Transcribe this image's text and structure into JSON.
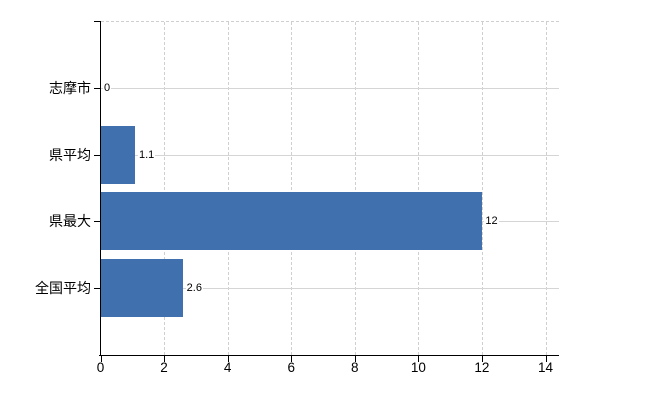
{
  "chart_data": {
    "type": "bar",
    "orientation": "horizontal",
    "title": "",
    "categories": [
      "志摩市",
      "県平均",
      "県最大",
      "全国平均"
    ],
    "values": [
      0,
      1.1,
      12,
      2.6
    ],
    "value_labels": [
      "0",
      "1.1",
      "12",
      "2.6"
    ],
    "x_ticks": [
      0,
      2,
      4,
      6,
      8,
      10,
      12,
      14
    ],
    "x_tick_labels": [
      "0",
      "2",
      "4",
      "6",
      "8",
      "10",
      "12",
      "14"
    ],
    "xlim": [
      0,
      14
    ],
    "grid": true,
    "legend": false,
    "colors": {
      "bar": "#4170af",
      "h_grid": "#d5d5d5",
      "v_grid": "#cfcfcf",
      "axis": "#000000",
      "text": "#000000",
      "background": "#ffffff"
    }
  }
}
